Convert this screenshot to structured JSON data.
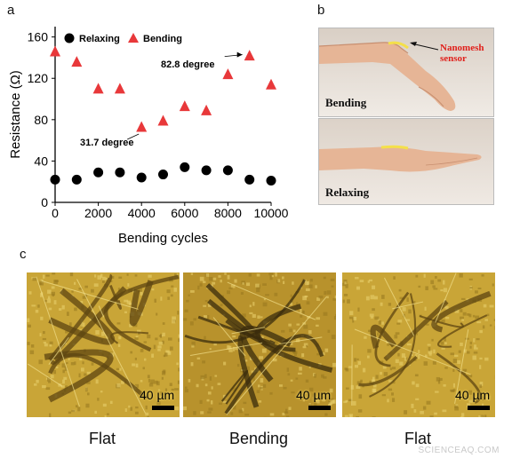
{
  "panels": {
    "a": "a",
    "b": "b",
    "c": "c"
  },
  "chart_data": {
    "type": "scatter",
    "xlabel": "Bending cycles",
    "ylabel": "Resistance (Ω)",
    "xlim": [
      0,
      10000
    ],
    "ylim": [
      0,
      170
    ],
    "xticks": [
      0,
      2000,
      4000,
      6000,
      8000,
      10000
    ],
    "yticks": [
      0,
      40,
      80,
      120,
      160
    ],
    "legend_position": "top",
    "series": [
      {
        "name": "Relaxing",
        "marker": "circle",
        "color": "#000000",
        "x": [
          0,
          1000,
          2000,
          3000,
          4000,
          5000,
          6000,
          7000,
          8000,
          9000,
          10000
        ],
        "y": [
          22,
          22,
          29,
          29,
          24,
          27,
          34,
          31,
          31,
          22,
          21
        ]
      },
      {
        "name": "Bending",
        "marker": "triangle",
        "color": "#e8383a",
        "x": [
          0,
          1000,
          2000,
          3000,
          4000,
          5000,
          6000,
          7000,
          8000,
          9000,
          10000
        ],
        "y": [
          146,
          136,
          110,
          110,
          73,
          79,
          93,
          89,
          124,
          142,
          114
        ]
      }
    ],
    "annotations": [
      {
        "text": "31.7 degree",
        "x": 4000,
        "y": 73
      },
      {
        "text": "82.8 degree",
        "x": 9000,
        "y": 142
      }
    ]
  },
  "photos": {
    "top_caption": "Bending",
    "bottom_caption": "Relaxing",
    "sensor_label_line1": "Nanomesh",
    "sensor_label_line2": "sensor",
    "colors": {
      "background": "#e9e1d8",
      "skin": "#e8b89a",
      "sensor": "#f4e04a",
      "label": "#e0201b"
    }
  },
  "micrographs": [
    {
      "caption": "Flat",
      "scale": "40 µm"
    },
    {
      "caption": "Bending",
      "scale": "40 µm"
    },
    {
      "caption": "Flat",
      "scale": "40 µm"
    }
  ],
  "watermark": "SCIENCEAQ.COM",
  "colors": {
    "gold": "#c9a230",
    "gold_dark": "#8a6a18",
    "marker_red": "#e8383a"
  }
}
